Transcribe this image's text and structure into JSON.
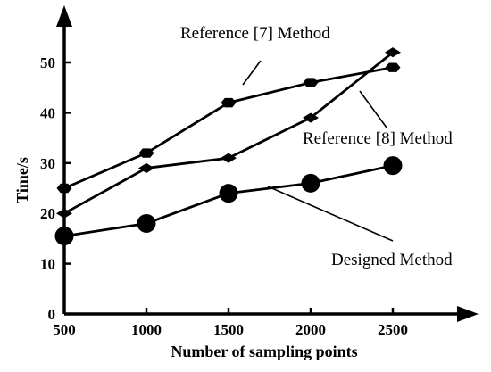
{
  "chart_data": {
    "type": "line",
    "xlabel": "Number of sampling points",
    "ylabel": "Time/s",
    "xlim": [
      500,
      2500
    ],
    "ylim": [
      0,
      55
    ],
    "x_ticks": [
      500,
      1000,
      1500,
      2000,
      2500
    ],
    "y_ticks": [
      0,
      10,
      20,
      30,
      40,
      50
    ],
    "grid": false,
    "series": [
      {
        "marker": "hexagon",
        "x": [
          500,
          1000,
          1500,
          2000,
          2500
        ],
        "y": [
          25,
          32,
          42,
          46,
          49
        ]
      },
      {
        "marker": "diamond",
        "x": [
          500,
          1000,
          1500,
          2000,
          2500
        ],
        "y": [
          20,
          29,
          31,
          39,
          52
        ]
      },
      {
        "marker": "circle",
        "x": [
          500,
          1000,
          1500,
          2000,
          2500
        ],
        "y": [
          15.5,
          18,
          24,
          26,
          29.5
        ]
      }
    ],
    "annotations": [
      {
        "text": "Reference [7]  Method",
        "series": 0
      },
      {
        "text": "Reference [8]  Method",
        "series": 1
      },
      {
        "text": "Designed  Method",
        "series": 2
      }
    ]
  }
}
